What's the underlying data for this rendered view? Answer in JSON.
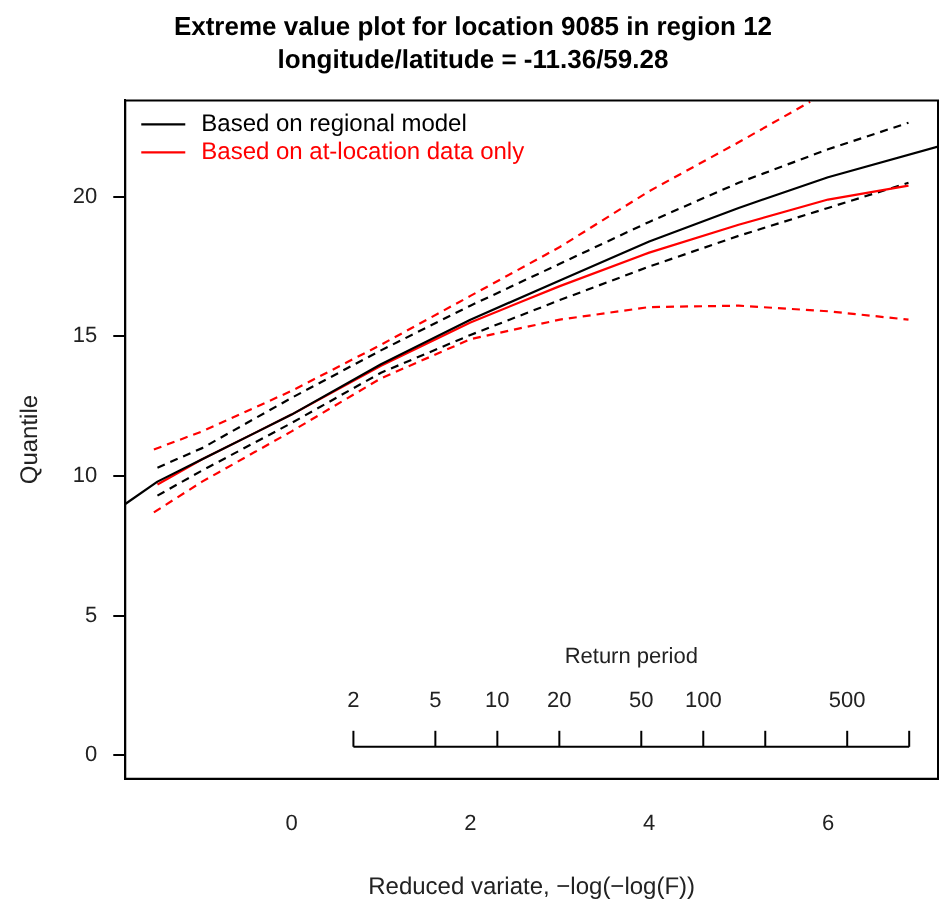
{
  "chart_data": {
    "type": "line",
    "title": "Extreme value plot for location 9085 in region 12",
    "subtitle": "longitude/latitude = -11.36/59.28",
    "xlabel": "Reduced variate, −log(−log(F))",
    "ylabel": "Quantile",
    "x2label": "Return period",
    "xlim": [
      -1.86,
      7.23
    ],
    "xticks": [
      0,
      2,
      4,
      6
    ],
    "ylim": [
      -0.84,
      23.45
    ],
    "yticks": [
      0,
      5,
      10,
      15,
      20
    ],
    "x2lim": [
      0.156,
      1380
    ],
    "log": "x2",
    "x2ticks": [
      2,
      5,
      10,
      20,
      50,
      100,
      {
        "value": 200,
        "label": null
      },
      500,
      {
        "value": 1000,
        "label": null
      }
    ],
    "grid": false,
    "legend": "top left",
    "marker": "none",
    "series": [
      {
        "name": "Based on regional model",
        "color": "#000000",
        "line_style": "solid",
        "x": [
          -1.86,
          -1.5,
          -1,
          0,
          1,
          2,
          3,
          4,
          5,
          6,
          7.23
        ],
        "values": [
          9.0,
          9.8,
          10.6,
          12.2,
          14.0,
          15.6,
          17.0,
          18.4,
          19.6,
          20.7,
          21.8
        ]
      },
      {
        "name": "Based on at-location data only",
        "color": "#ff0000",
        "line_style": "solid",
        "x": [
          -1.5,
          -1,
          0,
          1,
          2,
          3,
          4,
          5,
          6,
          6.9
        ],
        "values": [
          9.7,
          10.6,
          12.2,
          13.95,
          15.5,
          16.8,
          18.0,
          19.0,
          19.9,
          20.4
        ]
      },
      {
        "color": "#000000",
        "line_style": "dashed",
        "x": [
          -1.5,
          -1,
          0,
          1,
          2,
          3,
          4,
          5,
          6,
          6.9
        ],
        "values": [
          10.3,
          11.0,
          12.8,
          14.5,
          16.1,
          17.6,
          19.1,
          20.5,
          21.7,
          22.65
        ]
      },
      {
        "color": "#000000",
        "line_style": "dashed",
        "x": [
          -1.5,
          -1,
          0,
          1,
          2,
          3,
          4,
          5,
          6,
          6.9
        ],
        "values": [
          9.3,
          10.2,
          11.9,
          13.7,
          15.05,
          16.3,
          17.5,
          18.6,
          19.6,
          20.5
        ]
      },
      {
        "color": "#ff0000",
        "line_style": "dashed",
        "x": [
          -1.54,
          -1,
          0,
          1,
          2,
          3,
          4,
          5,
          5.8
        ],
        "values": [
          10.95,
          11.6,
          13.05,
          14.7,
          16.45,
          18.2,
          20.2,
          21.95,
          23.4
        ]
      },
      {
        "color": "#ff0000",
        "line_style": "dashed",
        "x": [
          -1.54,
          -1,
          0,
          1,
          2,
          3,
          4,
          5,
          6,
          6.9
        ],
        "values": [
          8.7,
          9.8,
          11.6,
          13.5,
          14.9,
          15.6,
          16.05,
          16.1,
          15.9,
          15.6
        ]
      }
    ]
  }
}
